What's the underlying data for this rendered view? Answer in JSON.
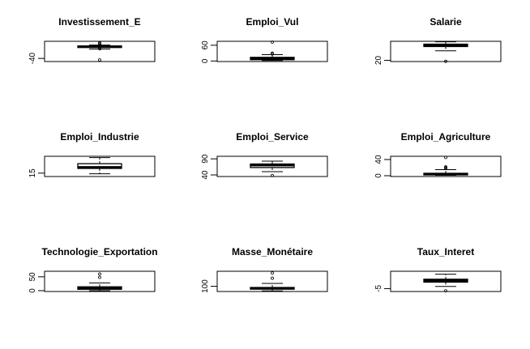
{
  "chart_data": [
    {
      "type": "box",
      "title": "Investissement_E",
      "ylim": [
        -50,
        15
      ],
      "yticks": [
        {
          "value": -40,
          "label": "-40"
        }
      ],
      "box": {
        "whisker_low": -10,
        "q1": -5,
        "median": -2,
        "q3": 0,
        "whisker_high": 3
      },
      "outliers": [
        -45,
        -9,
        -7,
        4,
        8,
        10
      ]
    },
    {
      "type": "box",
      "title": "Emploi_Vul",
      "ylim": [
        -2,
        75
      ],
      "yticks": [
        {
          "value": 0,
          "label": "0"
        },
        {
          "value": 60,
          "label": "60"
        }
      ],
      "box": {
        "whisker_low": 2,
        "q1": 5,
        "median": 9,
        "q3": 14,
        "whisker_high": 24
      },
      "outliers": [
        27,
        30,
        72
      ]
    },
    {
      "type": "box",
      "title": "Salarie",
      "ylim": [
        15,
        100
      ],
      "yticks": [
        {
          "value": 20,
          "label": "20"
        }
      ],
      "box": {
        "whisker_low": 60,
        "q1": 78,
        "median": 82,
        "q3": 88,
        "whisker_high": 98
      },
      "outliers": [
        16
      ]
    },
    {
      "type": "box",
      "title": "Emploi_Industrie",
      "ylim": [
        10,
        40
      ],
      "yticks": [
        {
          "value": 15,
          "label": "15"
        }
      ],
      "box": {
        "whisker_low": 14,
        "q1": 22,
        "median": 24,
        "q3": 29,
        "whisker_high": 38
      },
      "outliers": []
    },
    {
      "type": "box",
      "title": "Emploi_Service",
      "ylim": [
        35,
        98
      ],
      "yticks": [
        {
          "value": 40,
          "label": "40"
        },
        {
          "value": 90,
          "label": "90"
        }
      ],
      "box": {
        "whisker_low": 50,
        "q1": 63,
        "median": 70,
        "q3": 74,
        "whisker_high": 83
      },
      "outliers": [
        38
      ]
    },
    {
      "type": "box",
      "title": "Emploi_Agriculture",
      "ylim": [
        -2,
        48
      ],
      "yticks": [
        {
          "value": 0,
          "label": "0"
        },
        {
          "value": 40,
          "label": "40"
        }
      ],
      "box": {
        "whisker_low": 1,
        "q1": 2,
        "median": 4,
        "q3": 6,
        "whisker_high": 15
      },
      "outliers": [
        18,
        20,
        22,
        45
      ]
    },
    {
      "type": "box",
      "title": "Technologie_Exportation",
      "ylim": [
        -3,
        70
      ],
      "yticks": [
        {
          "value": 0,
          "label": "0"
        },
        {
          "value": 50,
          "label": "50"
        }
      ],
      "box": {
        "whisker_low": 0,
        "q1": 5,
        "median": 9,
        "q3": 14,
        "whisker_high": 28
      },
      "outliers": [
        48,
        60
      ]
    },
    {
      "type": "box",
      "title": "Masse_Monétaire",
      "ylim": [
        55,
        230
      ],
      "yticks": [
        {
          "value": 100,
          "label": "100"
        }
      ],
      "box": {
        "whisker_low": 60,
        "q1": 75,
        "median": 82,
        "q3": 90,
        "whisker_high": 125
      },
      "outliers": [
        170,
        215
      ]
    },
    {
      "type": "box",
      "title": "Taux_Interet",
      "ylim": [
        -7,
        7
      ],
      "yticks": [
        {
          "value": -5,
          "label": "-5"
        }
      ],
      "box": {
        "whisker_low": -3.5,
        "q1": -0.5,
        "median": 0.5,
        "q3": 1.5,
        "whisker_high": 5
      },
      "outliers": [
        -6.5
      ]
    }
  ]
}
